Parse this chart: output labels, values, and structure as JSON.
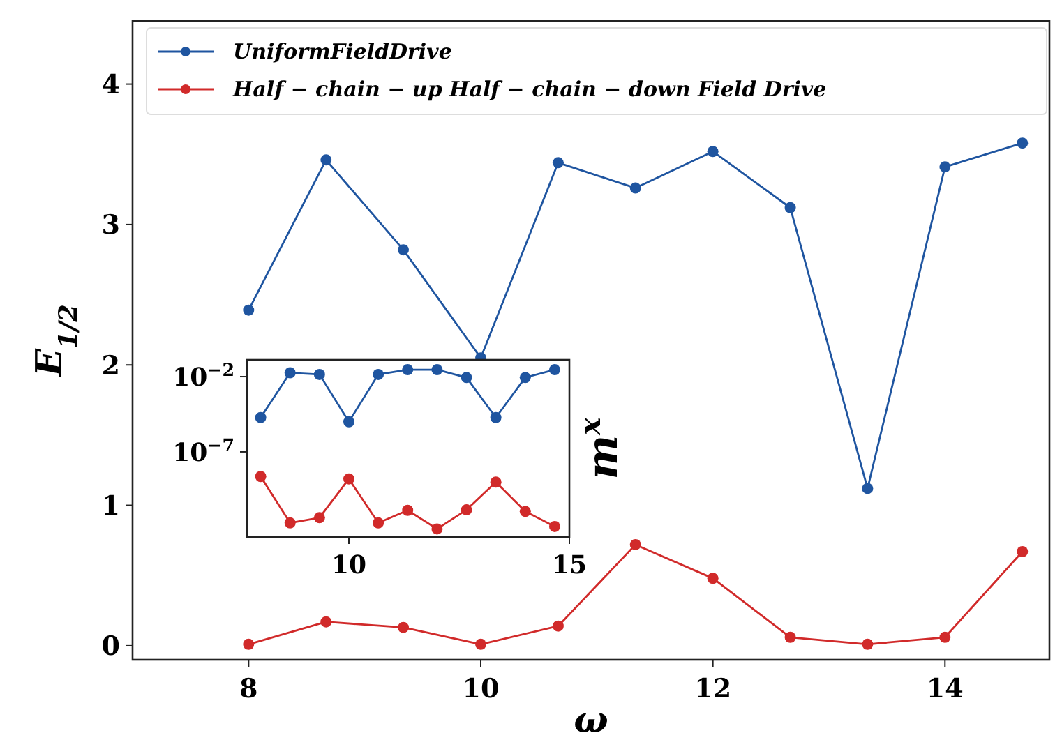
{
  "chart_data": [
    {
      "type": "line",
      "xlabel": "ω",
      "ylabel": "E$_{1/2}$",
      "x": [
        8,
        8.667,
        9.333,
        10,
        10.667,
        11.333,
        12,
        12.667,
        13.333,
        14,
        14.667
      ],
      "xlim": [
        7.0,
        14.9
      ],
      "ylim": [
        -0.1,
        4.45
      ],
      "xticks": [
        8,
        10,
        12,
        14
      ],
      "yticks": [
        0,
        1,
        2,
        3,
        4
      ],
      "marker": "circle",
      "line_style": "solid",
      "legend": "top left",
      "series": [
        {
          "name": "UniformFieldDrive",
          "color": "#1f55a0",
          "values": [
            2.39,
            3.46,
            2.82,
            2.05,
            3.44,
            3.26,
            3.52,
            3.12,
            1.12,
            3.41,
            3.58
          ]
        },
        {
          "name": "Half − chain − up Half − chain − down Field Drive",
          "color": "#d12a2a",
          "values": [
            0.01,
            0.17,
            0.13,
            0.01,
            0.14,
            0.72,
            0.48,
            0.06,
            0.01,
            0.06,
            0.67
          ]
        }
      ]
    },
    {
      "type": "line",
      "ylabel": "m$^{x}$",
      "x": [
        8,
        8.667,
        9.333,
        10,
        10.667,
        11.333,
        12,
        12.667,
        13.333,
        14,
        14.667
      ],
      "xlim": [
        7.69,
        15
      ],
      "ylim": [
        2.2e-13,
        0.13
      ],
      "log": "y",
      "xticks": [
        10,
        15
      ],
      "yticks": [
        {
          "value": 0.01,
          "label": "10$^{−2}$"
        },
        {
          "value": 1e-07,
          "label": "10$^{−7}$"
        }
      ],
      "marker": "circle",
      "line_style": "solid",
      "series": [
        {
          "color": "#1f55a0",
          "values": [
            1.9e-05,
            0.018,
            0.014,
            1e-05,
            0.014,
            0.029,
            0.029,
            0.0087,
            1.9e-05,
            0.0087,
            0.029
          ]
        },
        {
          "color": "#d12a2a",
          "values": [
            2.3e-09,
            1.9e-12,
            4.2e-12,
            1.6e-09,
            1.9e-12,
            1.3e-11,
            7.6e-13,
            1.4e-11,
            9.8e-10,
            1.1e-11,
            1.1e-12
          ]
        }
      ]
    }
  ]
}
